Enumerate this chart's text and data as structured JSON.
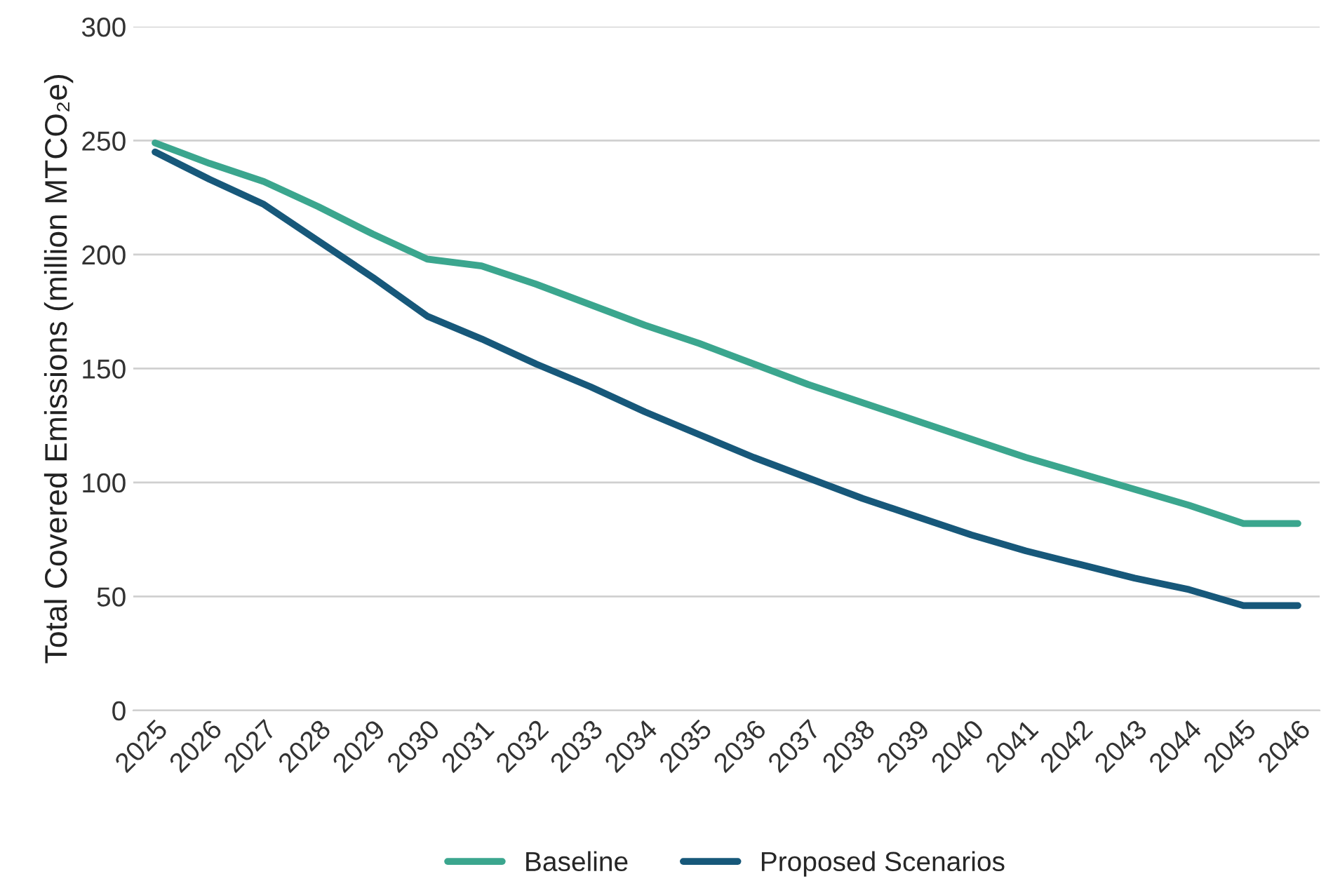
{
  "chart_data": {
    "type": "line",
    "ylabel": "Total Covered Emissions (million MTCO₂e)",
    "categories": [
      "2025",
      "2026",
      "2027",
      "2028",
      "2029",
      "2030",
      "2031",
      "2032",
      "2033",
      "2034",
      "2035",
      "2036",
      "2037",
      "2038",
      "2039",
      "2040",
      "2041",
      "2042",
      "2043",
      "2044",
      "2045",
      "2046"
    ],
    "series": [
      {
        "name": "Baseline",
        "color": "#3ba68e",
        "values": [
          249,
          240,
          232,
          221,
          209,
          198,
          195,
          187,
          178,
          169,
          161,
          152,
          143,
          135,
          127,
          119,
          111,
          104,
          97,
          90,
          82,
          82
        ]
      },
      {
        "name": "Proposed Scenarios",
        "color": "#17587a",
        "values": [
          245,
          233,
          222,
          206,
          190,
          173,
          163,
          152,
          142,
          131,
          121,
          111,
          102,
          93,
          85,
          77,
          70,
          64,
          58,
          53,
          46,
          46
        ]
      }
    ],
    "ylim": [
      0,
      300
    ],
    "yticks": [
      0,
      50,
      100,
      150,
      200,
      250,
      300
    ],
    "grid": "y",
    "legend": "bottom",
    "marker": "none",
    "line_style": "solid"
  }
}
